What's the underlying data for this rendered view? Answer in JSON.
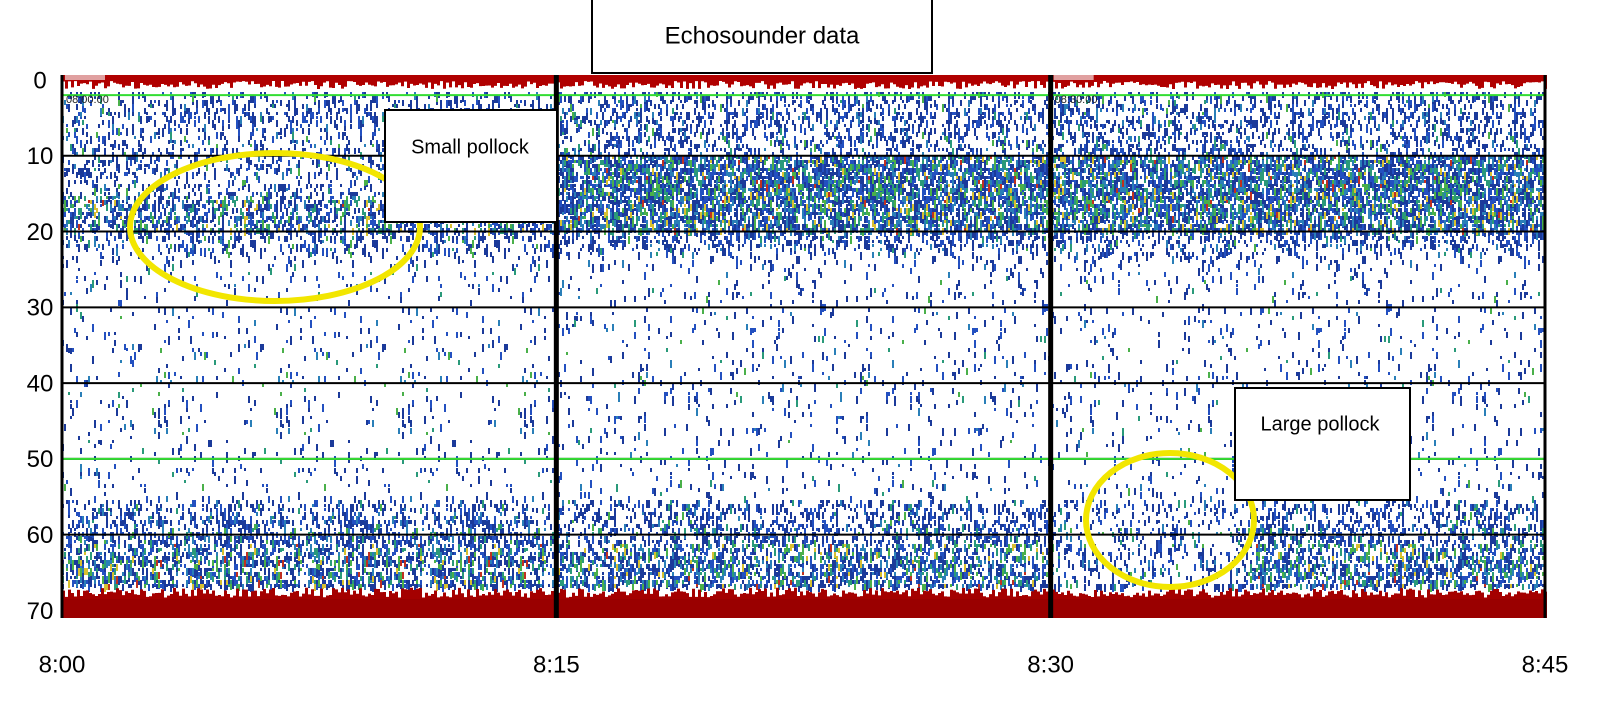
{
  "chart_data": {
    "type": "echogram",
    "title": "Echosounder data",
    "xlim": [
      0,
      45
    ],
    "xticks": [
      {
        "value": 0,
        "label": "8:00"
      },
      {
        "value": 15,
        "label": "8:15"
      },
      {
        "value": 30,
        "label": "8:30"
      },
      {
        "value": 45,
        "label": "8:45"
      }
    ],
    "ylim": [
      0,
      71
    ],
    "yticks": [
      0,
      10,
      20,
      30,
      40,
      50,
      60,
      70
    ],
    "y_inverted": true,
    "grid": true,
    "grid_color": "#000000",
    "reference_lines": [
      2,
      50
    ],
    "reference_color": "#33dd33",
    "time_stamps": [
      {
        "x": 0,
        "label": "08:00:00"
      },
      {
        "x": 30,
        "label": "08:30:00"
      }
    ],
    "annotations": [
      {
        "text": "Small pollock",
        "color": "#f2e600"
      },
      {
        "text": "Large pollock",
        "color": "#f2e600"
      }
    ]
  }
}
